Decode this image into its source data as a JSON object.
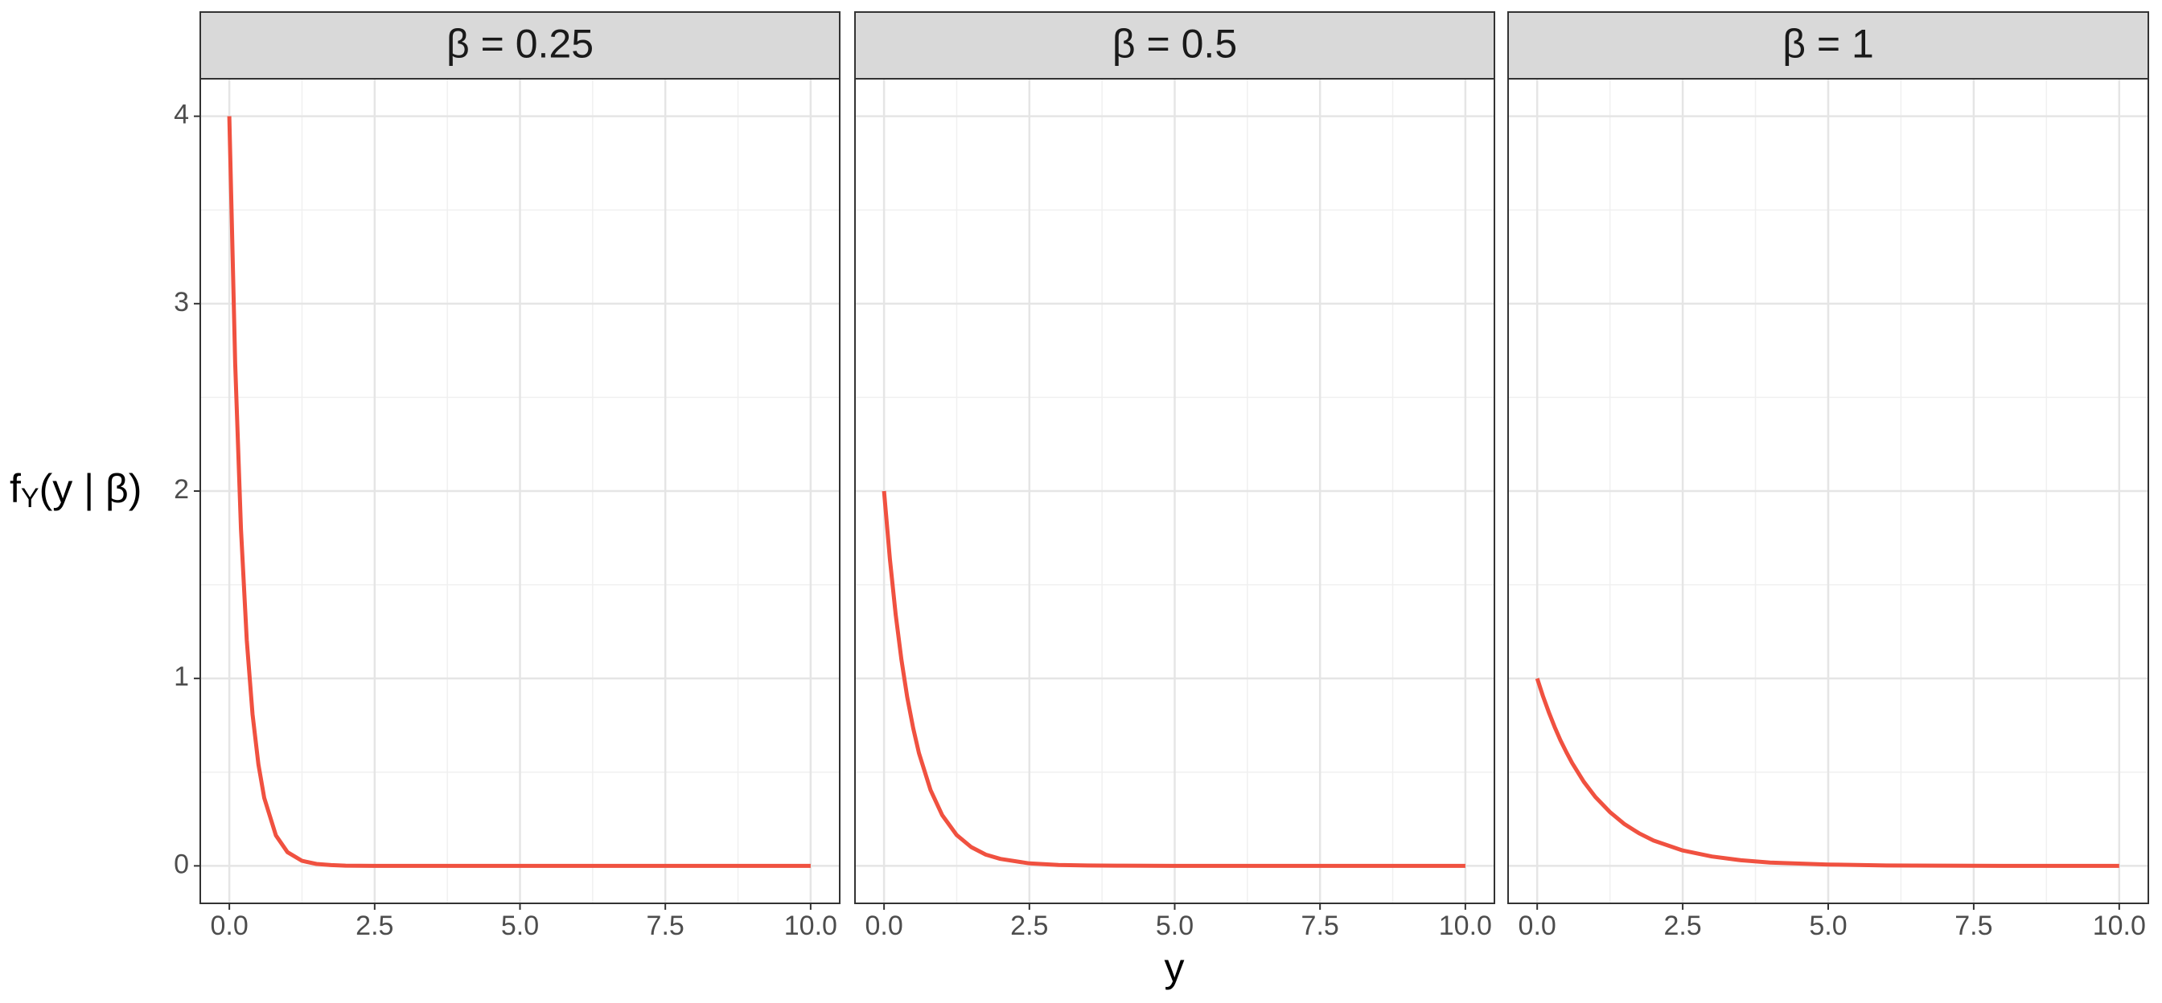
{
  "chart_data": [
    {
      "type": "line",
      "title": "β = 0.25",
      "color": "#f05140",
      "x": [
        0,
        0.1,
        0.2,
        0.3,
        0.4,
        0.5,
        0.6,
        0.8,
        1,
        1.25,
        1.5,
        1.75,
        2,
        2.5,
        3,
        3.5,
        4,
        5,
        6,
        7,
        8,
        9,
        10
      ],
      "values": [
        4,
        2.681,
        1.797,
        1.205,
        0.808,
        0.541,
        0.363,
        0.163,
        0.073,
        0.027,
        0.01,
        0.004,
        0.001,
        0,
        0,
        0,
        0,
        0,
        0,
        0,
        0,
        0,
        0
      ],
      "xlim": [
        -0.5,
        10.5
      ],
      "ylim": [
        -0.2,
        4.2
      ],
      "xticks": [
        {
          "value": 0,
          "label": "0.0"
        },
        {
          "value": 2.5,
          "label": "2.5"
        },
        {
          "value": 5,
          "label": "5.0"
        },
        {
          "value": 7.5,
          "label": "7.5"
        },
        {
          "value": 10,
          "label": "10.0"
        }
      ],
      "yticks": [
        0,
        1,
        2,
        3,
        4
      ],
      "grid": true
    },
    {
      "type": "line",
      "title": "β = 0.5",
      "color": "#f05140",
      "x": [
        0,
        0.1,
        0.2,
        0.3,
        0.4,
        0.5,
        0.6,
        0.8,
        1,
        1.25,
        1.5,
        1.75,
        2,
        2.5,
        3,
        3.5,
        4,
        5,
        6,
        7,
        8,
        9,
        10
      ],
      "values": [
        2,
        1.637,
        1.341,
        1.098,
        0.899,
        0.736,
        0.602,
        0.404,
        0.271,
        0.164,
        0.1,
        0.06,
        0.037,
        0.013,
        0.005,
        0.002,
        0.001,
        0,
        0,
        0,
        0,
        0,
        0
      ],
      "xlim": [
        -0.5,
        10.5
      ],
      "ylim": [
        -0.2,
        4.2
      ],
      "xticks": [
        {
          "value": 0,
          "label": "0.0"
        },
        {
          "value": 2.5,
          "label": "2.5"
        },
        {
          "value": 5,
          "label": "5.0"
        },
        {
          "value": 7.5,
          "label": "7.5"
        },
        {
          "value": 10,
          "label": "10.0"
        }
      ],
      "yticks": [
        0,
        1,
        2,
        3,
        4
      ],
      "grid": true
    },
    {
      "type": "line",
      "title": "β = 1",
      "color": "#f05140",
      "x": [
        0,
        0.1,
        0.2,
        0.3,
        0.4,
        0.5,
        0.6,
        0.8,
        1,
        1.25,
        1.5,
        1.75,
        2,
        2.5,
        3,
        3.5,
        4,
        5,
        6,
        7,
        8,
        9,
        10
      ],
      "values": [
        1,
        0.905,
        0.819,
        0.741,
        0.67,
        0.607,
        0.549,
        0.449,
        0.368,
        0.287,
        0.223,
        0.174,
        0.135,
        0.082,
        0.05,
        0.03,
        0.018,
        0.007,
        0.002,
        0.001,
        0,
        0,
        0
      ],
      "xlim": [
        -0.5,
        10.5
      ],
      "ylim": [
        -0.2,
        4.2
      ],
      "xticks": [
        {
          "value": 0,
          "label": "0.0"
        },
        {
          "value": 2.5,
          "label": "2.5"
        },
        {
          "value": 5,
          "label": "5.0"
        },
        {
          "value": 7.5,
          "label": "7.5"
        },
        {
          "value": 10,
          "label": "10.0"
        }
      ],
      "yticks": [
        0,
        1,
        2,
        3,
        4
      ],
      "grid": true
    }
  ],
  "x_label": "y",
  "y_label": [
    "f",
    "Y",
    "(y | β)"
  ]
}
